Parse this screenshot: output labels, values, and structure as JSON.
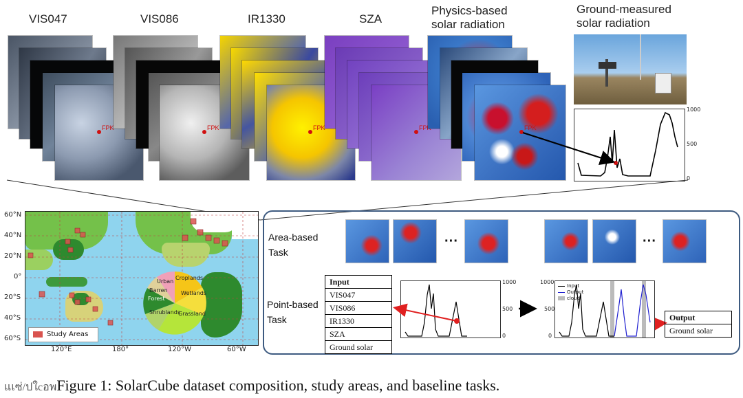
{
  "columns": [
    {
      "key": "vis047",
      "title_line1": "VIS047",
      "title_line2": ""
    },
    {
      "key": "vis086",
      "title_line1": "VIS086",
      "title_line2": ""
    },
    {
      "key": "ir1330",
      "title_line1": "IR1330",
      "title_line2": ""
    },
    {
      "key": "sza",
      "title_line1": "SZA",
      "title_line2": ""
    },
    {
      "key": "physics",
      "title_line1": "Physics-based",
      "title_line2": "solar radiation"
    },
    {
      "key": "ground",
      "title_line1": "Ground-measured",
      "title_line2": "solar radiation"
    }
  ],
  "station_label": "FPK",
  "ground_plot": {
    "ticks": [
      "1000",
      "500",
      "0"
    ]
  },
  "map": {
    "lat_labels": [
      "60°N",
      "40°N",
      "20°N",
      "0°",
      "20°S",
      "40°S",
      "60°S"
    ],
    "lon_labels": [
      "120°E",
      "180°",
      "120°W",
      "60°W"
    ],
    "legend": "Study Areas",
    "pie_labels": [
      "Urban",
      "Croplands",
      "Barren",
      "Wetlands",
      "Forest",
      "Shrublands",
      "Grassland"
    ]
  },
  "tasks": {
    "area_label_line1": "Area-based",
    "area_label_line2": "Task",
    "point_label_line1": "Point-based",
    "point_label_line2": "Task",
    "ellipsis": "···",
    "input_table": {
      "header": "Input",
      "rows": [
        "VIS047",
        "VIS086",
        "IR1330",
        "SZA",
        "Ground solar"
      ]
    },
    "output_table": {
      "header": "Output",
      "rows": [
        "Ground solar"
      ]
    },
    "plot1_ticks": [
      "1000",
      "500",
      "0"
    ],
    "plot2_ticks": [
      "1000",
      "500",
      "0"
    ],
    "plot2_legend": [
      "Input",
      "Output",
      "cloud"
    ]
  },
  "caption_prefix": "แเซ่/ปใcอพ",
  "caption": "Figure 1: SolarCube dataset composition, study areas, and baseline tasks.",
  "colors": {
    "panel_border": "#3d5a80",
    "arrow_red": "#e02020",
    "ocean": "#8fd4ee"
  }
}
